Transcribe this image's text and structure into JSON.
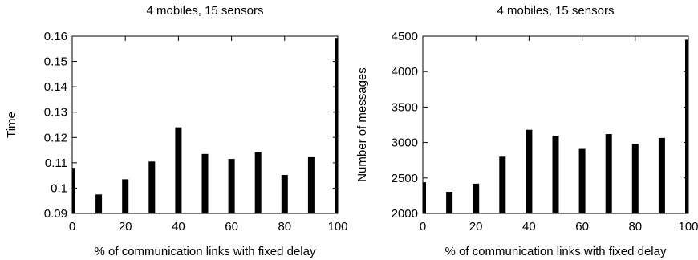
{
  "chart_data": [
    {
      "type": "bar",
      "title": "4 mobiles, 15 sensors",
      "xlabel": "% of communication links with fixed delay",
      "ylabel": "Time",
      "categories": [
        "0",
        "10",
        "20",
        "30",
        "40",
        "50",
        "60",
        "70",
        "80",
        "90",
        "100"
      ],
      "x": [
        0,
        10,
        20,
        30,
        40,
        50,
        60,
        70,
        80,
        90,
        100
      ],
      "values": [
        0.108,
        0.0975,
        0.1035,
        0.1105,
        0.124,
        0.1135,
        0.1115,
        0.1142,
        0.1052,
        0.1122,
        0.1593
      ],
      "xlim": [
        0,
        100
      ],
      "ylim": [
        0.09,
        0.16
      ],
      "xticks": [
        "0",
        "20",
        "40",
        "60",
        "80",
        "100"
      ],
      "yticks": [
        "0.09",
        "0.1",
        "0.11",
        "0.12",
        "0.13",
        "0.14",
        "0.15",
        "0.16"
      ],
      "grid": false,
      "bar_color": "#000000"
    },
    {
      "type": "bar",
      "title": "4 mobiles, 15 sensors",
      "xlabel": "% of communication links with fixed delay",
      "ylabel": "Number of messages",
      "categories": [
        "0",
        "10",
        "20",
        "30",
        "40",
        "50",
        "60",
        "70",
        "80",
        "90",
        "100"
      ],
      "x": [
        0,
        10,
        20,
        30,
        40,
        50,
        60,
        70,
        80,
        90,
        100
      ],
      "values": [
        2440,
        2305,
        2420,
        2800,
        3180,
        3095,
        2910,
        3120,
        2980,
        3065,
        4450
      ],
      "xlim": [
        0,
        100
      ],
      "ylim": [
        2000,
        4500
      ],
      "xticks": [
        "0",
        "20",
        "40",
        "60",
        "80",
        "100"
      ],
      "yticks": [
        "2000",
        "2500",
        "3000",
        "3500",
        "4000",
        "4500"
      ],
      "grid": false,
      "bar_color": "#000000"
    }
  ]
}
